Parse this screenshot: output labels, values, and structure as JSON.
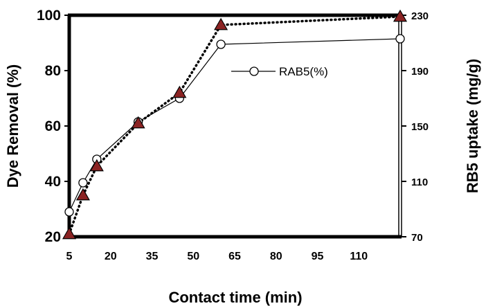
{
  "chart_data": {
    "type": "line",
    "title": "",
    "xlabel": "Contact time (min)",
    "ylabel": "Dye Removal (%)",
    "y2label": "RB5 uptake (mg/g)",
    "xlim": [
      5,
      125
    ],
    "ylim": [
      20,
      100
    ],
    "y2lim": [
      70,
      230
    ],
    "x_ticks": [
      "5",
      "20",
      "35",
      "50",
      "65",
      "80",
      "95",
      "110"
    ],
    "x_tick_values": [
      5,
      20,
      35,
      50,
      65,
      80,
      95,
      110
    ],
    "y_ticks": [
      "20",
      "40",
      "60",
      "80",
      "100"
    ],
    "y_tick_values": [
      20,
      40,
      60,
      80,
      100
    ],
    "y2_ticks": [
      "70",
      "110",
      "150",
      "190",
      "230"
    ],
    "y2_tick_values": [
      70,
      110,
      150,
      190,
      230
    ],
    "legend_position": "upper-right inside plot",
    "series": [
      {
        "name": "RAB5(%)",
        "axis": "left",
        "marker": "open-circle",
        "line": "solid",
        "color": "#000000",
        "x": [
          5,
          10,
          15,
          30,
          45,
          60,
          125
        ],
        "y": [
          29,
          39.5,
          48,
          61.5,
          70,
          89.5,
          91.5
        ]
      },
      {
        "axis": "right",
        "marker": "filled-triangle",
        "line": "dotted",
        "color": "#000000",
        "marker_color": "#8b2323",
        "x": [
          5,
          10,
          15,
          30,
          45,
          60,
          125
        ],
        "y": [
          72,
          100,
          121,
          152,
          174,
          223,
          229
        ]
      }
    ]
  }
}
